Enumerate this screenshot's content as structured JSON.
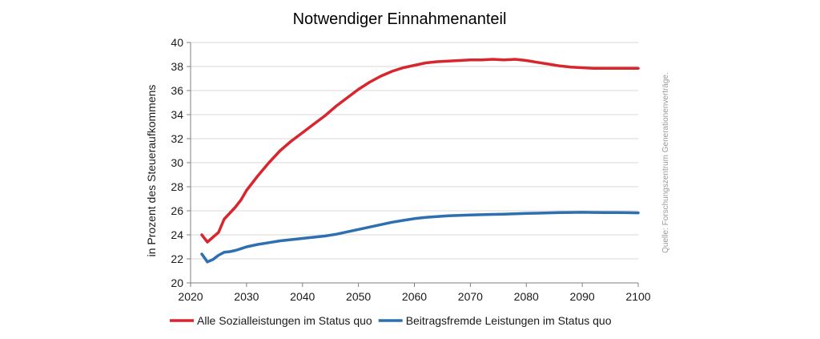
{
  "chart_data": {
    "type": "line",
    "title": "Notwendiger Einnahmenanteil",
    "xlabel": "",
    "ylabel": "in Prozent des Steueraufkommens",
    "xlim": [
      2020,
      2100
    ],
    "ylim": [
      20,
      40
    ],
    "x_ticks": [
      2020,
      2030,
      2040,
      2050,
      2060,
      2070,
      2080,
      2090,
      2100
    ],
    "y_ticks": [
      20,
      22,
      24,
      26,
      28,
      30,
      32,
      34,
      36,
      38,
      40
    ],
    "grid": true,
    "legend_position": "bottom",
    "source_note": "Quelle: Forschungszentrum Generationenverträge.",
    "series": [
      {
        "name": "Alle Sozialleistungen im Status quo",
        "color": "#d7262d",
        "x": [
          2022,
          2023,
          2024,
          2025,
          2026,
          2027,
          2028,
          2029,
          2030,
          2032,
          2034,
          2036,
          2038,
          2040,
          2042,
          2044,
          2046,
          2048,
          2050,
          2052,
          2054,
          2056,
          2058,
          2060,
          2062,
          2064,
          2066,
          2068,
          2070,
          2072,
          2074,
          2076,
          2078,
          2080,
          2082,
          2084,
          2086,
          2088,
          2090,
          2092,
          2094,
          2096,
          2098,
          2100
        ],
        "values": [
          24.0,
          23.4,
          23.8,
          24.2,
          25.3,
          25.8,
          26.3,
          26.9,
          27.7,
          28.9,
          30.0,
          31.0,
          31.8,
          32.5,
          33.2,
          33.9,
          34.7,
          35.4,
          36.1,
          36.7,
          37.2,
          37.6,
          37.9,
          38.1,
          38.3,
          38.4,
          38.45,
          38.5,
          38.55,
          38.55,
          38.6,
          38.55,
          38.6,
          38.5,
          38.35,
          38.2,
          38.05,
          37.95,
          37.9,
          37.85,
          37.85,
          37.85,
          37.85,
          37.85
        ]
      },
      {
        "name": "Beitragsfremde Leistungen im Status quo",
        "color": "#2e6fb0",
        "x": [
          2022,
          2023,
          2024,
          2025,
          2026,
          2027,
          2028,
          2029,
          2030,
          2032,
          2034,
          2036,
          2038,
          2040,
          2042,
          2044,
          2046,
          2048,
          2050,
          2052,
          2054,
          2056,
          2058,
          2060,
          2062,
          2064,
          2066,
          2068,
          2070,
          2072,
          2074,
          2076,
          2078,
          2080,
          2082,
          2084,
          2086,
          2088,
          2090,
          2092,
          2094,
          2096,
          2098,
          2100
        ],
        "values": [
          22.4,
          21.75,
          21.95,
          22.3,
          22.55,
          22.6,
          22.7,
          22.85,
          23.0,
          23.2,
          23.35,
          23.5,
          23.6,
          23.7,
          23.8,
          23.9,
          24.05,
          24.25,
          24.45,
          24.65,
          24.85,
          25.05,
          25.2,
          25.35,
          25.45,
          25.52,
          25.58,
          25.62,
          25.65,
          25.67,
          25.7,
          25.72,
          25.75,
          25.78,
          25.8,
          25.83,
          25.85,
          25.86,
          25.87,
          25.86,
          25.85,
          25.85,
          25.84,
          25.83
        ]
      }
    ]
  }
}
